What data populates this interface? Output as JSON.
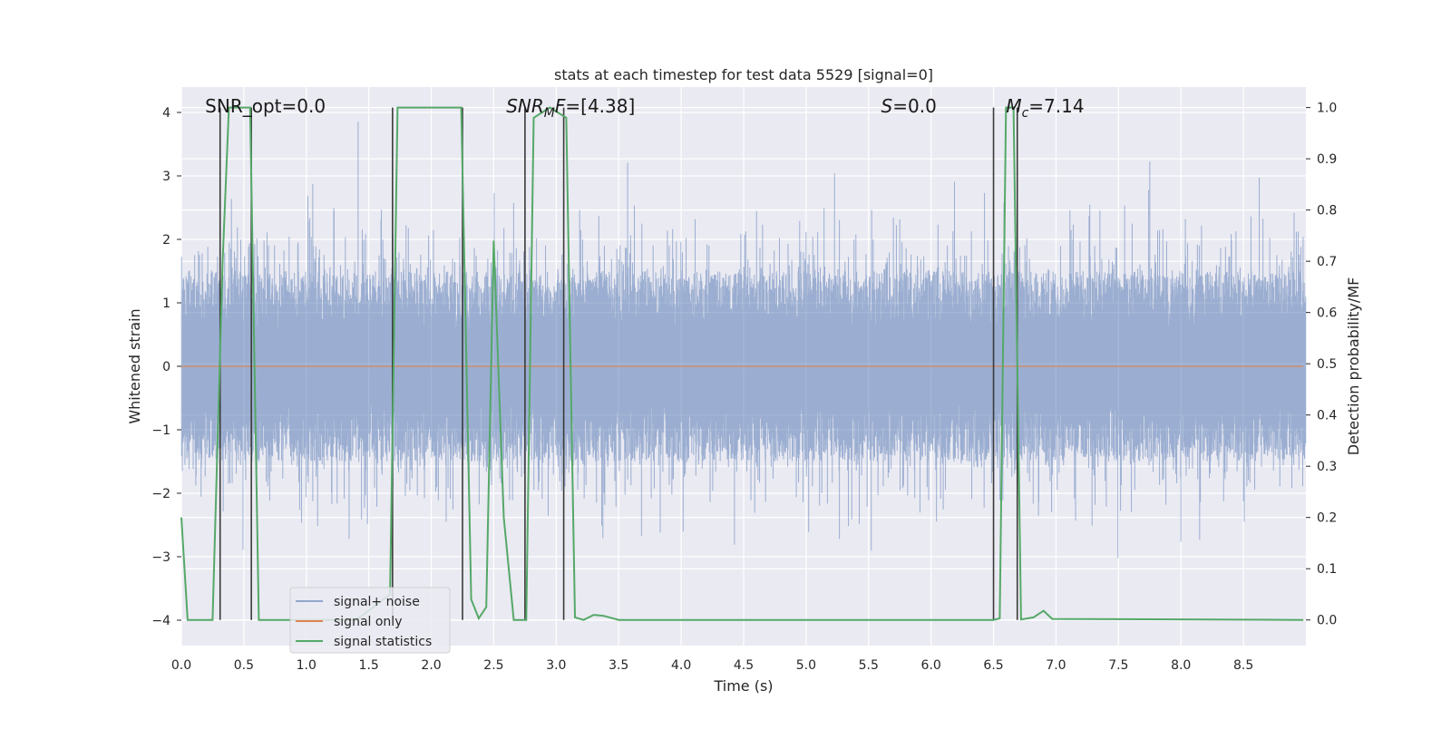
{
  "chart_data": {
    "type": "line",
    "title": "stats at each timestep for test data 5529 [signal=0]",
    "xlabel": "Time (s)",
    "ylabel": "Whitened strain",
    "y2label": "Detection probability/MF",
    "xlim": [
      0.0,
      9.0
    ],
    "ylim": [
      -4.4,
      4.4
    ],
    "y2lim": [
      -0.05,
      1.04
    ],
    "xticks": [
      0.0,
      0.5,
      1.0,
      1.5,
      2.0,
      2.5,
      3.0,
      3.5,
      4.0,
      4.5,
      5.0,
      5.5,
      6.0,
      6.5,
      7.0,
      7.5,
      8.0,
      8.5
    ],
    "xtick_labels": [
      "0.0",
      "0.5",
      "1.0",
      "1.5",
      "2.0",
      "2.5",
      "3.0",
      "3.5",
      "4.0",
      "4.5",
      "5.0",
      "5.5",
      "6.0",
      "6.5",
      "7.0",
      "7.5",
      "8.0",
      "8.5"
    ],
    "yticks": [
      4,
      3,
      2,
      1,
      0,
      -1,
      -2,
      -3,
      -4
    ],
    "ytick_labels": [
      "4",
      "3",
      "2",
      "1",
      "0",
      "−1",
      "−2",
      "−3",
      "−4"
    ],
    "y2ticks": [
      1.0,
      0.9,
      0.8,
      0.7,
      0.6,
      0.5,
      0.4,
      0.3,
      0.2,
      0.1,
      0.0
    ],
    "y2tick_labels": [
      "1.0",
      "0.9",
      "0.8",
      "0.7",
      "0.6",
      "0.5",
      "0.4",
      "0.3",
      "0.2",
      "0.1",
      "0.0"
    ],
    "grid": true,
    "legend_position": "lower-left",
    "colors": {
      "background": "#eaeaf2",
      "grid": "#ffffff",
      "signal_noise": "#4c72b0",
      "signal_only": "#dd8452",
      "signal_statistics": "#55a868",
      "vlines": "#3a3a3a"
    },
    "series": [
      {
        "name": "signal+ noise",
        "description": "noisy strain, std≈0.9"
      },
      {
        "name": "signal only",
        "values_constant": 0.0
      },
      {
        "name": "signal statistics",
        "axis": "right",
        "x": [
          0.0,
          0.05,
          0.25,
          0.33,
          0.38,
          0.55,
          0.62,
          0.75,
          1.4,
          1.67,
          1.73,
          2.05,
          2.24,
          2.32,
          2.38,
          2.44,
          2.5,
          2.58,
          2.66,
          2.76,
          2.82,
          2.95,
          3.08,
          3.15,
          3.22,
          3.3,
          3.38,
          3.5,
          6.5,
          6.55,
          6.6,
          6.66,
          6.72,
          6.82,
          6.9,
          6.97,
          8.98
        ],
        "values": [
          0.2,
          0.0,
          0.0,
          0.7,
          1.0,
          1.0,
          0.0,
          0.0,
          0.0,
          0.05,
          1.0,
          1.0,
          1.0,
          0.04,
          0.003,
          0.025,
          0.74,
          0.2,
          0.0,
          0.0,
          0.98,
          1.0,
          0.98,
          0.005,
          0.0,
          0.01,
          0.008,
          0.0,
          0.0,
          0.003,
          1.0,
          1.0,
          0.001,
          0.005,
          0.018,
          0.002,
          0.0
        ]
      }
    ],
    "vlines": [
      0.31,
      0.56,
      1.69,
      2.25,
      2.75,
      3.06,
      6.5,
      6.69
    ],
    "annotations": [
      {
        "text": "SNR_opt=0.0",
        "x": 0.19
      },
      {
        "text_italic": "SNR",
        "text_sub": "M",
        "text_italic2": "F",
        "text_rest": "=[4.38]",
        "x": 2.6
      },
      {
        "text_italic": "S",
        "text_rest": "=0.0",
        "x": 5.6
      },
      {
        "text_italic": "M",
        "text_sub": "c",
        "text_rest": "=7.14",
        "x": 6.6
      }
    ]
  }
}
